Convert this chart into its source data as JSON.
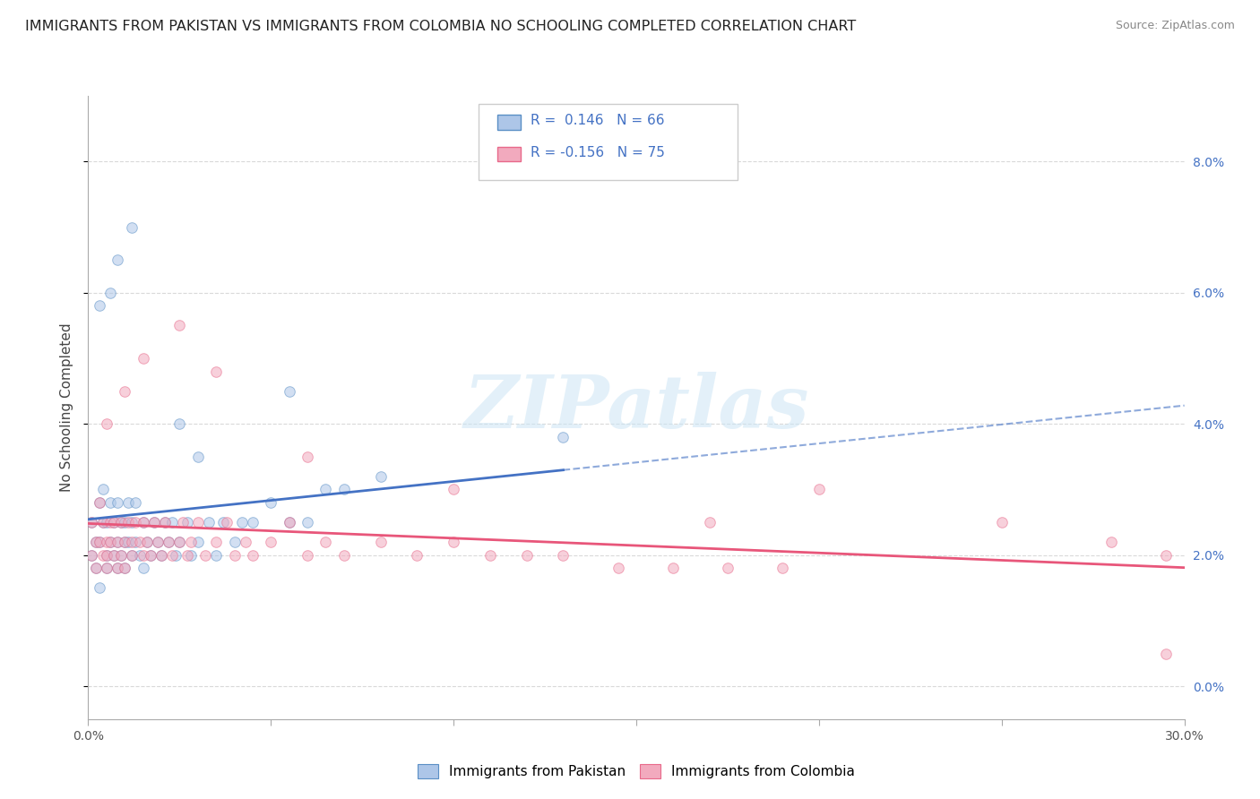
{
  "title": "IMMIGRANTS FROM PAKISTAN VS IMMIGRANTS FROM COLOMBIA NO SCHOOLING COMPLETED CORRELATION CHART",
  "source": "Source: ZipAtlas.com",
  "ylabel": "No Schooling Completed",
  "xlim": [
    0.0,
    0.3
  ],
  "ylim": [
    -0.005,
    0.09
  ],
  "xtick_positions": [
    0.0,
    0.05,
    0.1,
    0.15,
    0.2,
    0.25,
    0.3
  ],
  "xticklabels_ends": [
    "0.0%",
    "30.0%"
  ],
  "ytick_right_vals": [
    0.0,
    0.02,
    0.04,
    0.06,
    0.08
  ],
  "ytick_right_labels": [
    "0.0%",
    "2.0%",
    "4.0%",
    "6.0%",
    "8.0%"
  ],
  "series1_label": "Immigrants from Pakistan",
  "series2_label": "Immigrants from Colombia",
  "series1_color": "#adc6e8",
  "series2_color": "#f2aabe",
  "series1_edge_color": "#5a8fc5",
  "series2_edge_color": "#e8698a",
  "series1_line_color": "#4472c4",
  "series2_line_color": "#e8567a",
  "series1_R": 0.146,
  "series1_N": 66,
  "series2_R": -0.156,
  "series2_N": 75,
  "watermark_text": "ZIPatlas",
  "background_color": "#ffffff",
  "grid_color": "#d0d0d0",
  "pakistan_x": [
    0.001,
    0.001,
    0.002,
    0.002,
    0.003,
    0.003,
    0.003,
    0.004,
    0.004,
    0.005,
    0.005,
    0.005,
    0.006,
    0.006,
    0.007,
    0.007,
    0.008,
    0.008,
    0.008,
    0.009,
    0.009,
    0.01,
    0.01,
    0.01,
    0.011,
    0.011,
    0.012,
    0.012,
    0.013,
    0.013,
    0.014,
    0.015,
    0.015,
    0.016,
    0.017,
    0.018,
    0.019,
    0.02,
    0.021,
    0.022,
    0.023,
    0.024,
    0.025,
    0.027,
    0.028,
    0.03,
    0.033,
    0.035,
    0.037,
    0.04,
    0.042,
    0.045,
    0.05,
    0.055,
    0.06,
    0.065,
    0.07,
    0.08,
    0.003,
    0.006,
    0.008,
    0.012,
    0.025,
    0.03,
    0.055,
    0.13
  ],
  "pakistan_y": [
    0.025,
    0.02,
    0.022,
    0.018,
    0.028,
    0.022,
    0.015,
    0.03,
    0.025,
    0.02,
    0.025,
    0.018,
    0.022,
    0.028,
    0.02,
    0.025,
    0.022,
    0.028,
    0.018,
    0.025,
    0.02,
    0.022,
    0.025,
    0.018,
    0.028,
    0.022,
    0.02,
    0.025,
    0.022,
    0.028,
    0.02,
    0.025,
    0.018,
    0.022,
    0.02,
    0.025,
    0.022,
    0.02,
    0.025,
    0.022,
    0.025,
    0.02,
    0.022,
    0.025,
    0.02,
    0.022,
    0.025,
    0.02,
    0.025,
    0.022,
    0.025,
    0.025,
    0.028,
    0.025,
    0.025,
    0.03,
    0.03,
    0.032,
    0.058,
    0.06,
    0.065,
    0.07,
    0.04,
    0.035,
    0.045,
    0.038
  ],
  "colombia_x": [
    0.001,
    0.001,
    0.002,
    0.002,
    0.003,
    0.003,
    0.004,
    0.004,
    0.005,
    0.005,
    0.005,
    0.006,
    0.006,
    0.007,
    0.007,
    0.008,
    0.008,
    0.009,
    0.009,
    0.01,
    0.01,
    0.011,
    0.012,
    0.012,
    0.013,
    0.014,
    0.015,
    0.015,
    0.016,
    0.017,
    0.018,
    0.019,
    0.02,
    0.021,
    0.022,
    0.023,
    0.025,
    0.026,
    0.027,
    0.028,
    0.03,
    0.032,
    0.035,
    0.038,
    0.04,
    0.043,
    0.045,
    0.05,
    0.055,
    0.06,
    0.065,
    0.07,
    0.08,
    0.09,
    0.1,
    0.11,
    0.12,
    0.13,
    0.145,
    0.16,
    0.175,
    0.19,
    0.005,
    0.01,
    0.015,
    0.025,
    0.035,
    0.06,
    0.1,
    0.17,
    0.2,
    0.25,
    0.28,
    0.295,
    0.295
  ],
  "colombia_y": [
    0.025,
    0.02,
    0.022,
    0.018,
    0.028,
    0.022,
    0.02,
    0.025,
    0.02,
    0.022,
    0.018,
    0.025,
    0.022,
    0.02,
    0.025,
    0.022,
    0.018,
    0.025,
    0.02,
    0.022,
    0.018,
    0.025,
    0.022,
    0.02,
    0.025,
    0.022,
    0.02,
    0.025,
    0.022,
    0.02,
    0.025,
    0.022,
    0.02,
    0.025,
    0.022,
    0.02,
    0.022,
    0.025,
    0.02,
    0.022,
    0.025,
    0.02,
    0.022,
    0.025,
    0.02,
    0.022,
    0.02,
    0.022,
    0.025,
    0.02,
    0.022,
    0.02,
    0.022,
    0.02,
    0.022,
    0.02,
    0.02,
    0.02,
    0.018,
    0.018,
    0.018,
    0.018,
    0.04,
    0.045,
    0.05,
    0.055,
    0.048,
    0.035,
    0.03,
    0.025,
    0.03,
    0.025,
    0.022,
    0.02,
    0.005
  ],
  "marker_size": 70,
  "marker_alpha": 0.55,
  "title_fontsize": 11.5,
  "tick_fontsize": 10,
  "axis_label_fontsize": 11
}
